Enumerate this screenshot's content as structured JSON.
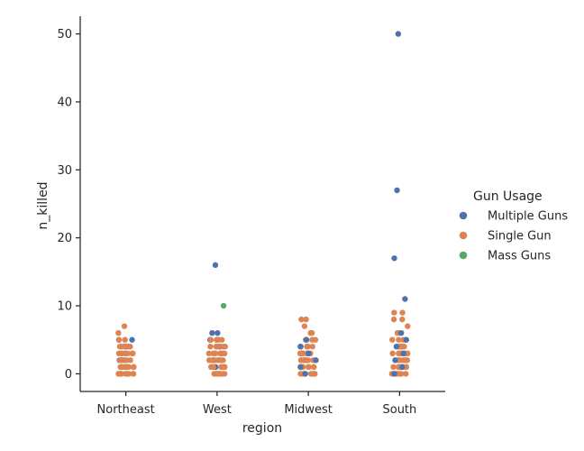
{
  "chart_data": {
    "type": "scatter",
    "subtype": "strip",
    "categories": [
      "Northeast",
      "West",
      "Midwest",
      "South"
    ],
    "xlabel": "region",
    "ylabel": "n_killed",
    "ylim": [
      -2.6,
      52.6
    ],
    "yticks": [
      0,
      10,
      20,
      30,
      40,
      50
    ],
    "grid": false,
    "legend": {
      "title": "Gun Usage",
      "placement": "right",
      "entries": [
        "Multiple Guns",
        "Single Gun",
        "Mass Guns"
      ]
    },
    "series": [
      {
        "name": "Multiple Guns",
        "color": "#4c72b0",
        "points": [
          [
            "Northeast",
            0
          ],
          [
            "Northeast",
            1
          ],
          [
            "Northeast",
            2
          ],
          [
            "Northeast",
            2
          ],
          [
            "Northeast",
            3
          ],
          [
            "Northeast",
            4
          ],
          [
            "Northeast",
            5
          ],
          [
            "Northeast",
            5
          ],
          [
            "West",
            0
          ],
          [
            "West",
            1
          ],
          [
            "West",
            2
          ],
          [
            "West",
            3
          ],
          [
            "West",
            4
          ],
          [
            "West",
            5
          ],
          [
            "West",
            5
          ],
          [
            "West",
            6
          ],
          [
            "West",
            6
          ],
          [
            "West",
            16
          ],
          [
            "Midwest",
            0
          ],
          [
            "Midwest",
            1
          ],
          [
            "Midwest",
            2
          ],
          [
            "Midwest",
            3
          ],
          [
            "Midwest",
            4
          ],
          [
            "Midwest",
            5
          ],
          [
            "South",
            0
          ],
          [
            "South",
            1
          ],
          [
            "South",
            2
          ],
          [
            "South",
            3
          ],
          [
            "South",
            4
          ],
          [
            "South",
            5
          ],
          [
            "South",
            6
          ],
          [
            "South",
            11
          ],
          [
            "South",
            17
          ],
          [
            "South",
            27
          ],
          [
            "South",
            50
          ]
        ]
      },
      {
        "name": "Single Gun",
        "color": "#dd8452",
        "counts_by_category": {
          "Northeast": [
            [
              0,
              10
            ],
            [
              1,
              9
            ],
            [
              2,
              8
            ],
            [
              3,
              7
            ],
            [
              4,
              5
            ],
            [
              5,
              2
            ],
            [
              6,
              1
            ],
            [
              7,
              1
            ]
          ],
          "West": [
            [
              0,
              10
            ],
            [
              1,
              9
            ],
            [
              2,
              8
            ],
            [
              3,
              7
            ],
            [
              4,
              6
            ],
            [
              5,
              4
            ]
          ],
          "Midwest": [
            [
              0,
              10
            ],
            [
              1,
              9
            ],
            [
              2,
              8
            ],
            [
              3,
              7
            ],
            [
              4,
              5
            ],
            [
              5,
              3
            ],
            [
              6,
              2
            ],
            [
              7,
              1
            ],
            [
              8,
              2
            ]
          ],
          "South": [
            [
              0,
              10
            ],
            [
              1,
              9
            ],
            [
              2,
              8
            ],
            [
              3,
              7
            ],
            [
              4,
              6
            ],
            [
              5,
              4
            ],
            [
              6,
              2
            ],
            [
              7,
              1
            ],
            [
              8,
              2
            ],
            [
              9,
              2
            ]
          ]
        }
      },
      {
        "name": "Mass Guns",
        "color": "#55a868",
        "points": [
          [
            "West",
            10
          ]
        ]
      }
    ]
  }
}
